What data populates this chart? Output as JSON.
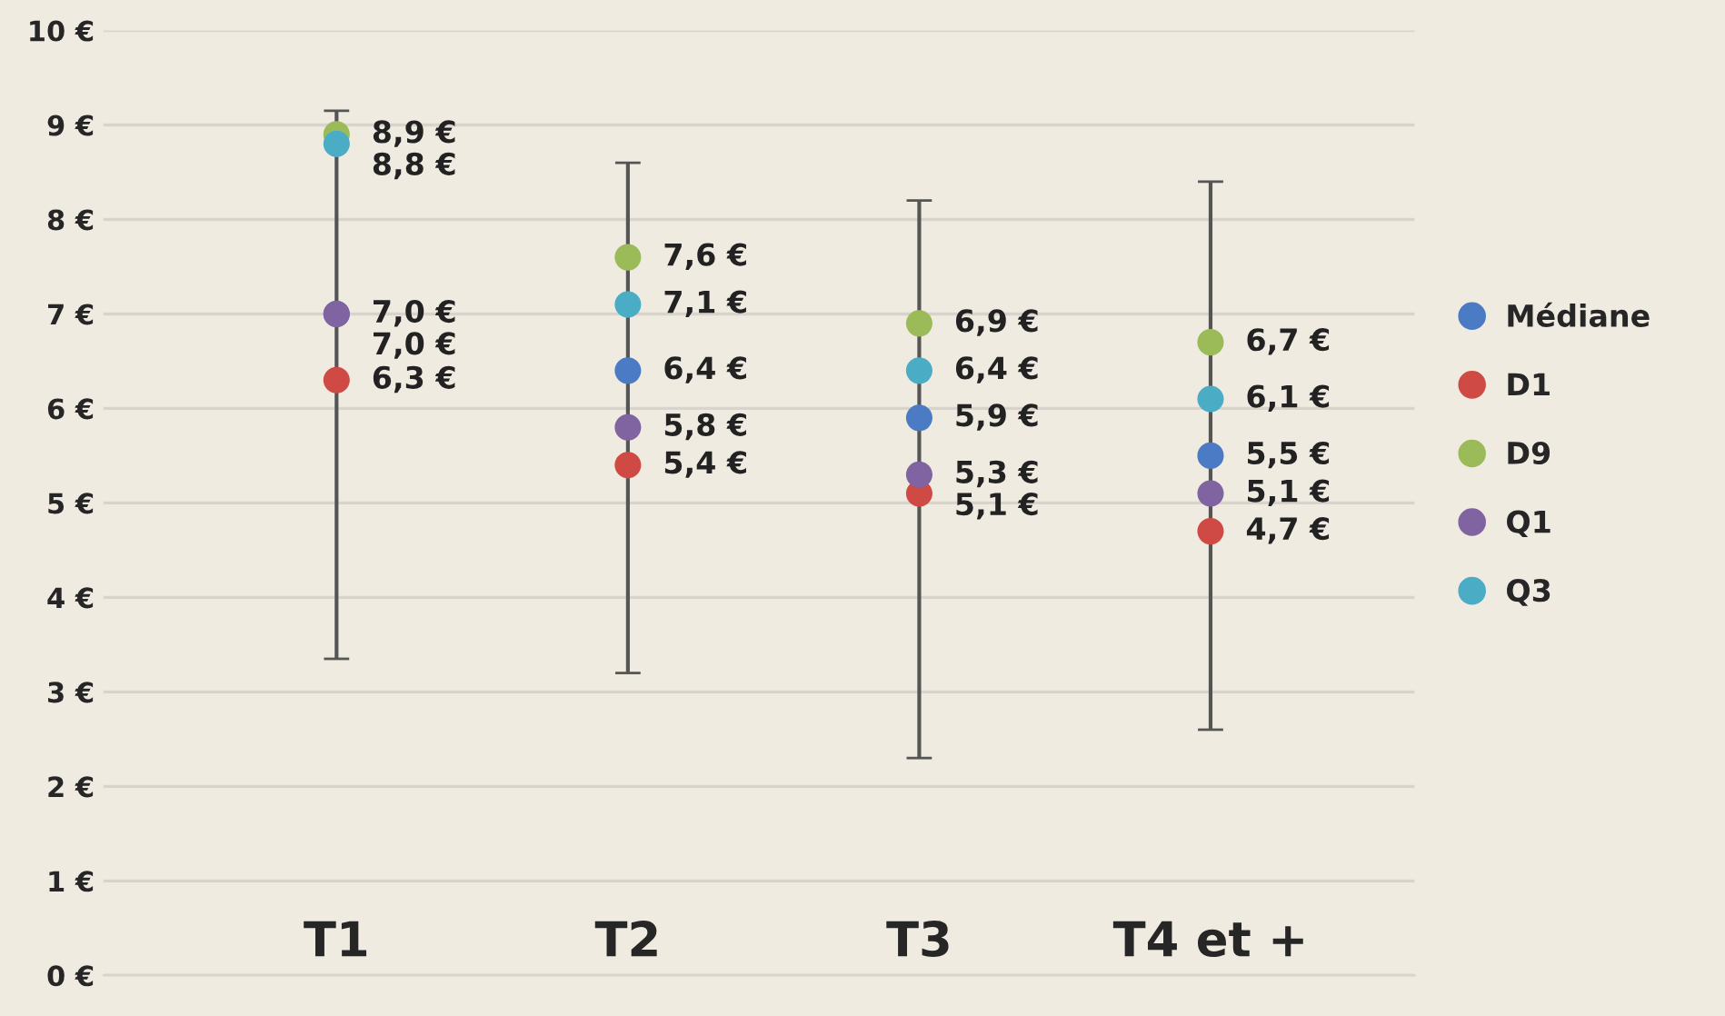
{
  "chart_data": {
    "type": "scatter",
    "categories": [
      "T1",
      "T2",
      "T3",
      "T4 et +"
    ],
    "ylim": [
      0,
      10
    ],
    "yticks": [
      {
        "value": 0,
        "label": "0 €"
      },
      {
        "value": 1,
        "label": "1 €"
      },
      {
        "value": 2,
        "label": "2 €"
      },
      {
        "value": 3,
        "label": "3 €"
      },
      {
        "value": 4,
        "label": "4 €"
      },
      {
        "value": 5,
        "label": "5 €"
      },
      {
        "value": 6,
        "label": "6 €"
      },
      {
        "value": 7,
        "label": "7 €"
      },
      {
        "value": 8,
        "label": "8 €"
      },
      {
        "value": 9,
        "label": "9 €"
      },
      {
        "value": 10,
        "label": "10 €"
      }
    ],
    "grid": "y",
    "legend": "right",
    "marker": "circle",
    "series": [
      {
        "name": "Médiane",
        "color": "#4a7bc4",
        "values": [
          7.0,
          6.4,
          5.9,
          5.5
        ],
        "value_labels": [
          "7,0 €",
          "6,4 €",
          "5,9 €",
          "5,5 €"
        ],
        "errors": [
          [
            3.35,
            9.15
          ],
          [
            3.2,
            8.6
          ],
          [
            2.3,
            8.2
          ],
          [
            2.6,
            8.4
          ]
        ]
      },
      {
        "name": "D1",
        "color": "#d04a45",
        "values": [
          6.3,
          5.4,
          5.1,
          4.7
        ],
        "value_labels": [
          "6,3 €",
          "5,4 €",
          "5,1 €",
          "4,7 €"
        ]
      },
      {
        "name": "D9",
        "color": "#9bbb59",
        "values": [
          8.9,
          7.6,
          6.9,
          6.7
        ],
        "value_labels": [
          "8,9 €",
          "7,6 €",
          "6,9 €",
          "6,7 €"
        ]
      },
      {
        "name": "Q1",
        "color": "#8064a2",
        "values": [
          7.0,
          5.8,
          5.3,
          5.1
        ],
        "value_labels": [
          "7,0 €",
          "5,8 €",
          "5,3 €",
          "5,1 €"
        ]
      },
      {
        "name": "Q3",
        "color": "#4bacc6",
        "values": [
          8.8,
          7.1,
          6.4,
          6.1
        ],
        "value_labels": [
          "8,8 €",
          "7,1 €",
          "6,4 €",
          "6,1 €"
        ]
      }
    ]
  }
}
